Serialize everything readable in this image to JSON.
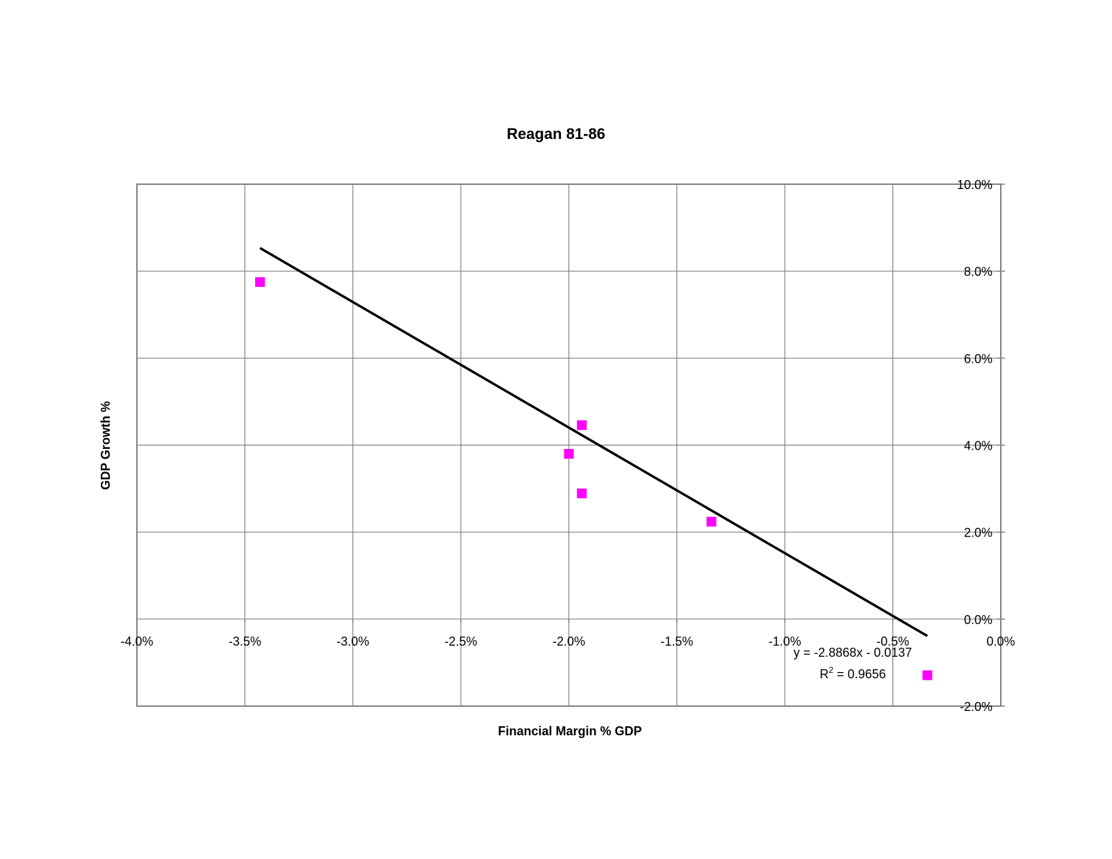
{
  "chart_data": {
    "type": "scatter",
    "title": "Reagan 81-86",
    "xlabel": "Financial Margin % GDP",
    "ylabel": "GDP Growth %",
    "xlim": [
      -0.04,
      0.0
    ],
    "ylim": [
      -0.02,
      0.1
    ],
    "xticks": [
      -0.04,
      -0.035,
      -0.03,
      -0.025,
      -0.02,
      -0.015,
      -0.01,
      -0.005,
      0.0
    ],
    "xtick_labels": [
      "-4.0%",
      "-3.5%",
      "-3.0%",
      "-2.5%",
      "-2.0%",
      "-1.5%",
      "-1.0%",
      "-0.5%",
      "0.0%"
    ],
    "yticks": [
      -0.02,
      0.0,
      0.02,
      0.04,
      0.06,
      0.08,
      0.1
    ],
    "ytick_labels": [
      "-2.0%",
      "0.0%",
      "2.0%",
      "4.0%",
      "6.0%",
      "8.0%",
      "10.0%"
    ],
    "y_axis_side": "right",
    "grid": true,
    "series": [
      {
        "x": [
          -0.0343,
          -0.02,
          -0.0194,
          -0.0194,
          -0.0134,
          -0.0034
        ],
        "y": [
          0.0775,
          0.038,
          0.0446,
          0.0289,
          0.0224,
          -0.0129
        ],
        "color": "#ff00ff",
        "marker": "square"
      }
    ],
    "trendline": {
      "slope": -2.8868,
      "intercept": -0.0137,
      "x_range": [
        -0.0343,
        -0.0034
      ],
      "color": "#000000",
      "equation_label": "y = -2.8868x - 0.0137",
      "r2_prefix": "R",
      "r2_superscript": "2",
      "r2_value": " = 0.9656"
    }
  }
}
